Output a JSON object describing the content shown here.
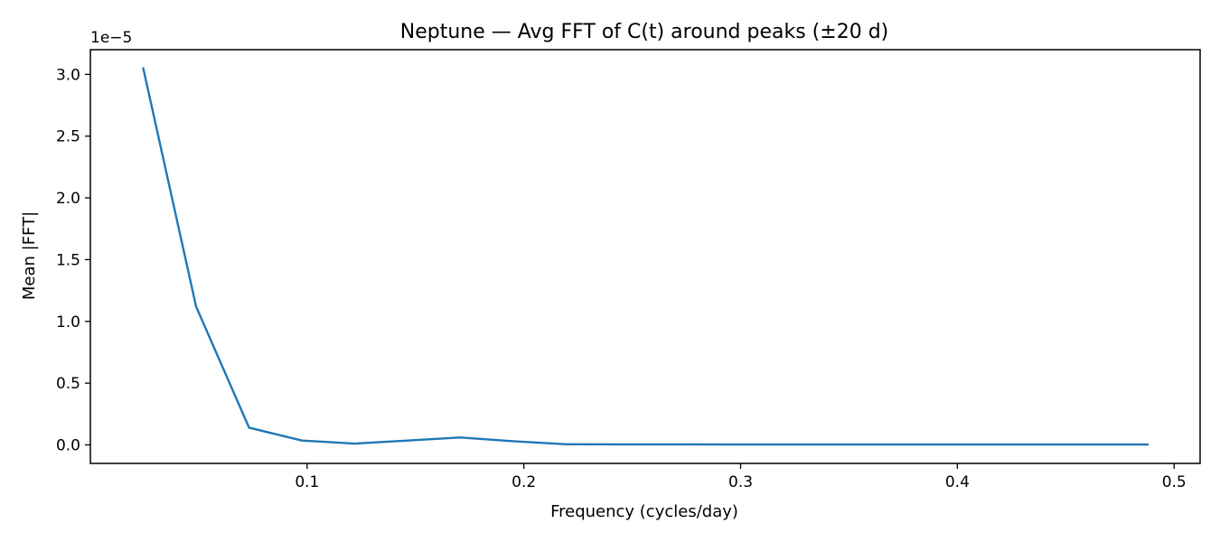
{
  "chart_data": {
    "type": "line",
    "title": "Neptune — Avg FFT of C(t) around peaks (±20 d)",
    "xlabel": "Frequency (cycles/day)",
    "ylabel": "Mean |FFT|",
    "y_offset_text": "1e−5",
    "xlim": [
      0.0,
      0.512
    ],
    "ylim": [
      -0.15,
      3.2
    ],
    "x_ticks": [
      {
        "value": 0.1,
        "label": "0.1"
      },
      {
        "value": 0.2,
        "label": "0.2"
      },
      {
        "value": 0.3,
        "label": "0.3"
      },
      {
        "value": 0.4,
        "label": "0.4"
      },
      {
        "value": 0.5,
        "label": "0.5"
      }
    ],
    "y_ticks": [
      {
        "value": 0.0,
        "label": "0.0"
      },
      {
        "value": 0.5,
        "label": "0.5"
      },
      {
        "value": 1.0,
        "label": "1.0"
      },
      {
        "value": 1.5,
        "label": "1.5"
      },
      {
        "value": 2.0,
        "label": "2.0"
      },
      {
        "value": 2.5,
        "label": "2.5"
      },
      {
        "value": 3.0,
        "label": "3.0"
      }
    ],
    "grid": false,
    "legend": "none",
    "series": [
      {
        "color": "#1f77b4",
        "x": [
          0.0244,
          0.0488,
          0.0732,
          0.0976,
          0.122,
          0.1463,
          0.1707,
          0.1951,
          0.2195,
          0.2439,
          0.2683,
          0.2927,
          0.3171,
          0.3415,
          0.3659,
          0.3902,
          0.4146,
          0.439,
          0.4634,
          0.4878
        ],
        "y": [
          3.05,
          1.12,
          0.14,
          0.035,
          0.01,
          0.035,
          0.06,
          0.03,
          0.005,
          0.004,
          0.004,
          0.003,
          0.003,
          0.003,
          0.003,
          0.003,
          0.003,
          0.003,
          0.003,
          0.003
        ]
      }
    ]
  }
}
